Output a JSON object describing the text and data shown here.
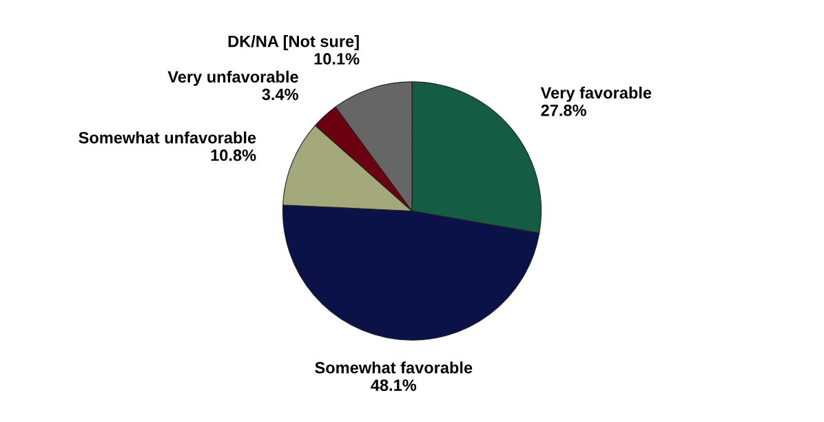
{
  "chart_data": {
    "type": "pie",
    "categories": [
      "Very favorable",
      "Somewhat favorable",
      "Somewhat unfavorable",
      "Very unfavorable",
      "DK/NA [Not sure]"
    ],
    "values": [
      27.8,
      48.1,
      10.8,
      3.4,
      10.1
    ],
    "value_labels": [
      "27.8%",
      "48.1%",
      "10.8%",
      "3.4%",
      "10.1%"
    ],
    "colors": [
      "#145c44",
      "#0b1248",
      "#a3a97a",
      "#6b0011",
      "#666666"
    ]
  }
}
